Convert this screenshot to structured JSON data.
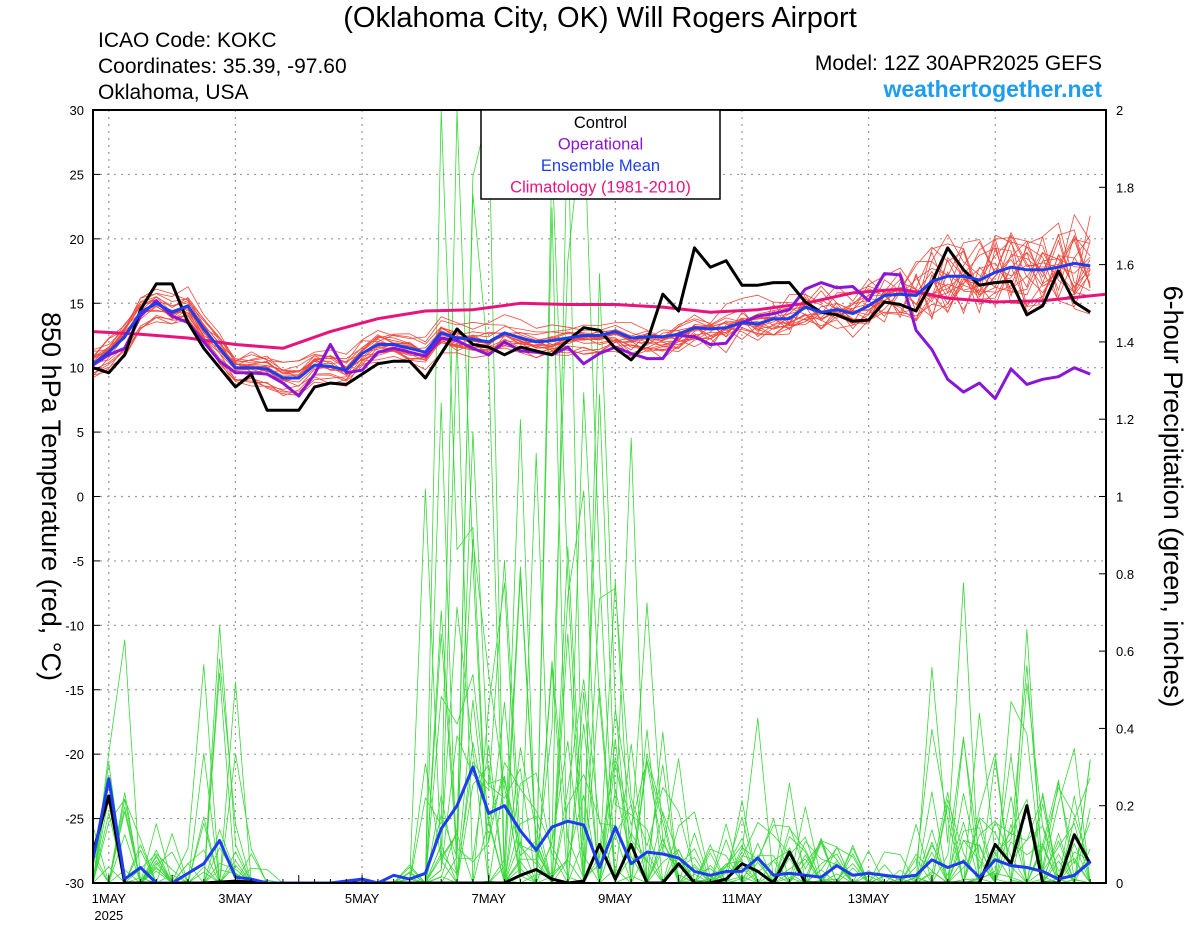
{
  "header": {
    "title": "(Oklahoma City, OK) Will Rogers Airport",
    "icao": "ICAO Code: KOKC",
    "coordinates": "Coordinates: 35.39, -97.60",
    "region": "Oklahoma, USA",
    "model": "Model: 12Z 30APR2025 GEFS",
    "site": "weathertogether.net"
  },
  "chart_data": {
    "type": "line",
    "ylabel_left": "850 hPa Temperature (red, °C)",
    "ylabel_right": "6-hour Precipitation (green, inches)",
    "ylim_left": [
      -30,
      30
    ],
    "ylim_right": [
      0,
      2
    ],
    "yticks_left": [
      "30",
      "25",
      "20",
      "15",
      "10",
      "5",
      "0",
      "-5",
      "-10",
      "-15",
      "-20",
      "-25",
      "-30"
    ],
    "yticks_right": [
      "2",
      "1.8",
      "1.6",
      "1.4",
      "1.2",
      "1",
      "0.8",
      "0.6",
      "0.4",
      "0.2",
      "0"
    ],
    "xlim_days": [
      0.75,
      16.75
    ],
    "xticks": [
      {
        "day": 1,
        "label": "1MAY",
        "sub": "2025"
      },
      {
        "day": 3,
        "label": "3MAY",
        "sub": ""
      },
      {
        "day": 5,
        "label": "5MAY",
        "sub": ""
      },
      {
        "day": 7,
        "label": "7MAY",
        "sub": ""
      },
      {
        "day": 9,
        "label": "9MAY",
        "sub": ""
      },
      {
        "day": 11,
        "label": "11MAY",
        "sub": ""
      },
      {
        "day": 13,
        "label": "13MAY",
        "sub": ""
      },
      {
        "day": 15,
        "label": "15MAY",
        "sub": ""
      }
    ],
    "grid": true,
    "legend_placement": "top-center",
    "legend": [
      {
        "name": "Control",
        "color": "#000000"
      },
      {
        "name": "Operational",
        "color": "#8a15d6"
      },
      {
        "name": "Ensemble Mean",
        "color": "#1c3ef0"
      },
      {
        "name": "Climatology (1981-2010)",
        "color": "#e8147c"
      }
    ],
    "colors": {
      "members_temp": "#f0483c",
      "members_precip": "#38d838",
      "control": "#000000",
      "operational": "#8a15d6",
      "mean": "#1c3ef0",
      "climatology": "#e8147c"
    },
    "series_temp": {
      "control": [
        [
          0.75,
          10
        ],
        [
          1.0,
          9.6
        ],
        [
          1.25,
          11
        ],
        [
          1.5,
          14.5
        ],
        [
          1.75,
          16.5
        ],
        [
          2.0,
          16.5
        ],
        [
          2.25,
          13.5
        ],
        [
          2.5,
          11.5
        ],
        [
          2.75,
          10
        ],
        [
          3.0,
          8.5
        ],
        [
          3.25,
          9.5
        ],
        [
          3.5,
          6.7
        ],
        [
          3.75,
          6.7
        ],
        [
          4.0,
          6.7
        ],
        [
          4.25,
          8.5
        ],
        [
          4.5,
          8.8
        ],
        [
          4.75,
          8.7
        ],
        [
          5.0,
          9.5
        ],
        [
          5.25,
          10.3
        ],
        [
          5.5,
          10.5
        ],
        [
          5.75,
          10.5
        ],
        [
          6.0,
          9.2
        ],
        [
          6.25,
          11.1
        ],
        [
          6.5,
          13
        ],
        [
          6.75,
          11.8
        ],
        [
          7.0,
          11.6
        ],
        [
          7.25,
          11.0
        ],
        [
          7.5,
          11.6
        ],
        [
          7.75,
          11.3
        ],
        [
          8.0,
          11
        ],
        [
          8.25,
          12.1
        ],
        [
          8.5,
          13.1
        ],
        [
          8.75,
          12.9
        ],
        [
          9.0,
          11.5
        ],
        [
          9.25,
          10.6
        ],
        [
          9.5,
          12
        ],
        [
          9.75,
          15.7
        ],
        [
          10.0,
          14.4
        ],
        [
          10.25,
          19.3
        ],
        [
          10.5,
          17.8
        ],
        [
          10.75,
          18.3
        ],
        [
          11.0,
          16.4
        ],
        [
          11.25,
          16.4
        ],
        [
          11.5,
          16.6
        ],
        [
          11.75,
          16.6
        ],
        [
          12.0,
          15.1
        ],
        [
          12.25,
          14.3
        ],
        [
          12.5,
          14.1
        ],
        [
          12.75,
          13.6
        ],
        [
          13.0,
          13.7
        ],
        [
          13.25,
          15.1
        ],
        [
          13.5,
          14.9
        ],
        [
          13.75,
          14.4
        ],
        [
          14.0,
          16.6
        ],
        [
          14.25,
          19.3
        ],
        [
          14.5,
          17.6
        ],
        [
          14.75,
          16.4
        ],
        [
          15.0,
          16.6
        ],
        [
          15.25,
          16.7
        ],
        [
          15.5,
          14.1
        ],
        [
          15.75,
          14.8
        ],
        [
          16.0,
          17.5
        ],
        [
          16.25,
          15.1
        ],
        [
          16.5,
          14.3
        ]
      ],
      "operational": [
        [
          0.75,
          10.2
        ],
        [
          1.0,
          11
        ],
        [
          1.25,
          11.5
        ],
        [
          1.5,
          14
        ],
        [
          1.75,
          15.2
        ],
        [
          2.0,
          14
        ],
        [
          2.25,
          13.5
        ],
        [
          2.5,
          12
        ],
        [
          2.75,
          10.5
        ],
        [
          3.0,
          9.6
        ],
        [
          3.25,
          9.6
        ],
        [
          3.5,
          9.5
        ],
        [
          3.75,
          8.8
        ],
        [
          4.0,
          7.8
        ],
        [
          4.25,
          9.5
        ],
        [
          4.5,
          11.8
        ],
        [
          4.75,
          9.6
        ],
        [
          5.0,
          9.8
        ],
        [
          5.25,
          11.2
        ],
        [
          5.5,
          11.5
        ],
        [
          5.75,
          11.2
        ],
        [
          6.0,
          10.9
        ],
        [
          6.25,
          12.3
        ],
        [
          6.5,
          12.1
        ],
        [
          6.75,
          11.5
        ],
        [
          7.0,
          11
        ],
        [
          7.25,
          12
        ],
        [
          7.5,
          11.3
        ],
        [
          7.75,
          11.2
        ],
        [
          8.0,
          11
        ],
        [
          8.25,
          11.6
        ],
        [
          8.5,
          10.3
        ],
        [
          8.75,
          11.1
        ],
        [
          9.0,
          11.6
        ],
        [
          9.25,
          11.1
        ],
        [
          9.5,
          10.7
        ],
        [
          9.75,
          10.7
        ],
        [
          10.0,
          12.5
        ],
        [
          10.25,
          12.4
        ],
        [
          10.5,
          11.8
        ],
        [
          10.75,
          11.9
        ],
        [
          11.0,
          13.5
        ],
        [
          11.25,
          14
        ],
        [
          11.5,
          14.2
        ],
        [
          11.75,
          14.5
        ],
        [
          12.0,
          16.1
        ],
        [
          12.25,
          16.6
        ],
        [
          12.5,
          16.2
        ],
        [
          12.75,
          16.3
        ],
        [
          13.0,
          15.2
        ],
        [
          13.25,
          17.3
        ],
        [
          13.5,
          17.2
        ],
        [
          13.75,
          12.9
        ],
        [
          14.0,
          11.4
        ],
        [
          14.25,
          9.1
        ],
        [
          14.5,
          8.1
        ],
        [
          14.75,
          8.8
        ],
        [
          15.0,
          7.6
        ],
        [
          15.25,
          9.9
        ],
        [
          15.5,
          8.7
        ],
        [
          15.75,
          9.1
        ],
        [
          16.0,
          9.3
        ],
        [
          16.25,
          10
        ],
        [
          16.5,
          9.5
        ]
      ],
      "mean": [
        [
          0.75,
          10.3
        ],
        [
          1.0,
          11.2
        ],
        [
          1.25,
          12.4
        ],
        [
          1.5,
          14.3
        ],
        [
          1.75,
          15
        ],
        [
          2.0,
          14.3
        ],
        [
          2.25,
          14.8
        ],
        [
          2.5,
          13
        ],
        [
          2.75,
          11.5
        ],
        [
          3.0,
          10
        ],
        [
          3.25,
          10
        ],
        [
          3.5,
          9.9
        ],
        [
          3.75,
          9.2
        ],
        [
          4.0,
          9.2
        ],
        [
          4.25,
          10.2
        ],
        [
          4.5,
          10.1
        ],
        [
          4.75,
          9.8
        ],
        [
          5.0,
          11.1
        ],
        [
          5.25,
          11.8
        ],
        [
          5.5,
          11.8
        ],
        [
          5.75,
          11.5
        ],
        [
          6.0,
          11.2
        ],
        [
          6.25,
          12.7
        ],
        [
          6.5,
          12.3
        ],
        [
          6.75,
          12.2
        ],
        [
          7.0,
          12
        ],
        [
          7.25,
          12.7
        ],
        [
          7.5,
          12.3
        ],
        [
          7.75,
          12
        ],
        [
          8.0,
          12.1
        ],
        [
          8.25,
          12.3
        ],
        [
          8.5,
          12.5
        ],
        [
          8.75,
          12.5
        ],
        [
          9.0,
          12.8
        ],
        [
          9.25,
          12.3
        ],
        [
          9.5,
          12.4
        ],
        [
          9.75,
          12.4
        ],
        [
          10.0,
          12.6
        ],
        [
          10.25,
          13.1
        ],
        [
          10.5,
          13
        ],
        [
          10.75,
          13.1
        ],
        [
          11.0,
          13.5
        ],
        [
          11.25,
          13.4
        ],
        [
          11.5,
          13.8
        ],
        [
          11.75,
          13.8
        ],
        [
          12.0,
          14.7
        ],
        [
          12.25,
          14.3
        ],
        [
          12.5,
          14.5
        ],
        [
          12.75,
          14.2
        ],
        [
          13.0,
          14.8
        ],
        [
          13.25,
          15.6
        ],
        [
          13.5,
          15.7
        ],
        [
          13.75,
          15.6
        ],
        [
          14.0,
          16.7
        ],
        [
          14.25,
          17.1
        ],
        [
          14.5,
          17.1
        ],
        [
          14.75,
          16.8
        ],
        [
          15.0,
          17.4
        ],
        [
          15.25,
          17.8
        ],
        [
          15.5,
          17.6
        ],
        [
          15.75,
          17.6
        ],
        [
          16.0,
          17.8
        ],
        [
          16.25,
          18.1
        ],
        [
          16.5,
          17.9
        ]
      ],
      "climatology": [
        [
          0.75,
          12.8
        ],
        [
          1.5,
          12.6
        ],
        [
          2.25,
          12.3
        ],
        [
          3.0,
          11.8
        ],
        [
          3.75,
          11.5
        ],
        [
          4.5,
          12.8
        ],
        [
          5.25,
          13.8
        ],
        [
          6.0,
          14.4
        ],
        [
          6.75,
          14.5
        ],
        [
          7.5,
          15
        ],
        [
          8.25,
          14.9
        ],
        [
          9.0,
          14.9
        ],
        [
          9.75,
          14.7
        ],
        [
          10.5,
          14.3
        ],
        [
          11.25,
          14.5
        ],
        [
          12.0,
          15
        ],
        [
          12.75,
          15.8
        ],
        [
          13.5,
          16.1
        ],
        [
          14.25,
          15.4
        ],
        [
          15.0,
          15.1
        ],
        [
          15.75,
          15.2
        ],
        [
          16.75,
          15.7
        ]
      ]
    },
    "series_precip": {
      "control": [
        [
          0.75,
          0.08
        ],
        [
          1.0,
          0.225
        ],
        [
          1.25,
          0
        ],
        [
          1.5,
          0
        ],
        [
          2.0,
          0
        ],
        [
          2.5,
          0
        ],
        [
          3.0,
          0.005
        ],
        [
          3.5,
          0
        ],
        [
          4.0,
          0
        ],
        [
          5.0,
          0
        ],
        [
          6.0,
          0
        ],
        [
          7.0,
          0
        ],
        [
          7.25,
          0
        ],
        [
          7.5,
          0.02
        ],
        [
          7.75,
          0.035
        ],
        [
          8.0,
          0.01
        ],
        [
          8.25,
          0
        ],
        [
          8.5,
          0.005
        ],
        [
          8.75,
          0.1
        ],
        [
          9.0,
          0.01
        ],
        [
          9.25,
          0.1
        ],
        [
          9.5,
          0
        ],
        [
          9.75,
          0
        ],
        [
          10.0,
          0.05
        ],
        [
          10.25,
          0
        ],
        [
          10.5,
          0
        ],
        [
          10.75,
          0.01
        ],
        [
          11.0,
          0.05
        ],
        [
          11.25,
          0.03
        ],
        [
          11.5,
          0
        ],
        [
          11.75,
          0.08
        ],
        [
          12.0,
          0
        ],
        [
          12.5,
          0
        ],
        [
          13.0,
          0
        ],
        [
          14.0,
          0
        ],
        [
          14.75,
          0
        ],
        [
          15.0,
          0.1
        ],
        [
          15.25,
          0.05
        ],
        [
          15.5,
          0.2
        ],
        [
          15.75,
          0
        ],
        [
          16.0,
          0
        ],
        [
          16.25,
          0.125
        ],
        [
          16.5,
          0.05
        ]
      ],
      "mean": [
        [
          0.75,
          0.06
        ],
        [
          1.0,
          0.27
        ],
        [
          1.25,
          0.01
        ],
        [
          1.5,
          0.04
        ],
        [
          1.75,
          0
        ],
        [
          2.0,
          0
        ],
        [
          2.5,
          0.05
        ],
        [
          2.75,
          0.11
        ],
        [
          3.0,
          0.015
        ],
        [
          3.25,
          0.01
        ],
        [
          3.5,
          0
        ],
        [
          4.0,
          0
        ],
        [
          4.5,
          0
        ],
        [
          5.0,
          0.01
        ],
        [
          5.25,
          0
        ],
        [
          5.5,
          0.02
        ],
        [
          5.75,
          0.01
        ],
        [
          6.0,
          0.025
        ],
        [
          6.25,
          0.14
        ],
        [
          6.5,
          0.2
        ],
        [
          6.75,
          0.3
        ],
        [
          7.0,
          0.18
        ],
        [
          7.25,
          0.2
        ],
        [
          7.5,
          0.135
        ],
        [
          7.75,
          0.085
        ],
        [
          8.0,
          0.145
        ],
        [
          8.25,
          0.16
        ],
        [
          8.5,
          0.15
        ],
        [
          8.75,
          0.04
        ],
        [
          9.0,
          0.145
        ],
        [
          9.25,
          0.05
        ],
        [
          9.5,
          0.08
        ],
        [
          9.75,
          0.075
        ],
        [
          10.0,
          0.065
        ],
        [
          10.25,
          0.03
        ],
        [
          10.5,
          0.02
        ],
        [
          10.75,
          0.03
        ],
        [
          11.0,
          0.03
        ],
        [
          11.25,
          0.065
        ],
        [
          11.5,
          0.02
        ],
        [
          11.75,
          0.025
        ],
        [
          12.0,
          0.02
        ],
        [
          12.25,
          0.015
        ],
        [
          12.5,
          0.045
        ],
        [
          12.75,
          0.02
        ],
        [
          13.0,
          0.025
        ],
        [
          13.25,
          0.02
        ],
        [
          13.5,
          0.015
        ],
        [
          13.75,
          0.02
        ],
        [
          14.0,
          0.06
        ],
        [
          14.25,
          0.04
        ],
        [
          14.5,
          0.055
        ],
        [
          14.75,
          0.015
        ],
        [
          15.0,
          0.06
        ],
        [
          15.25,
          0.045
        ],
        [
          15.5,
          0.04
        ],
        [
          15.75,
          0.03
        ],
        [
          16.0,
          0.01
        ],
        [
          16.25,
          0.02
        ],
        [
          16.5,
          0.055
        ]
      ]
    },
    "members": 20
  }
}
